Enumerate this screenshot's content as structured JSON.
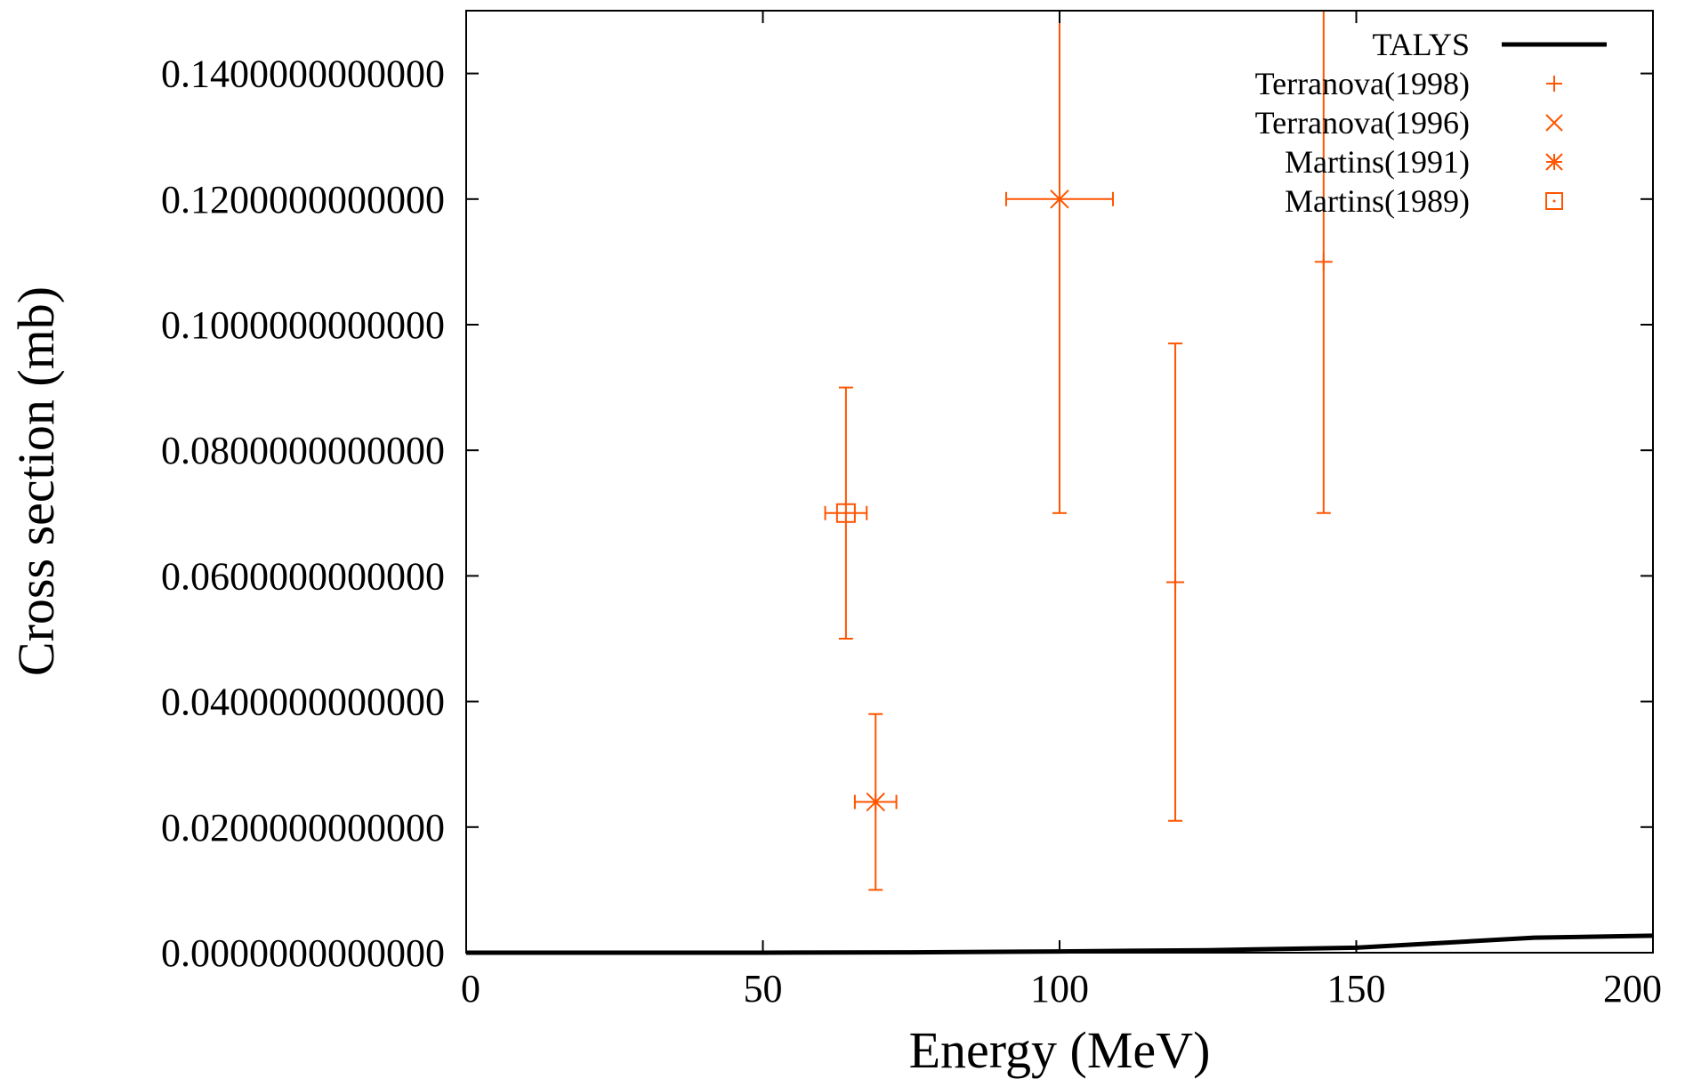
{
  "chart_data": {
    "type": "scatter",
    "xlabel": "Energy (MeV)",
    "ylabel": "Cross section (mb)",
    "xlim": [
      0,
      200
    ],
    "ylim": [
      0,
      0.15
    ],
    "x_ticks": [
      0,
      50,
      100,
      150,
      200
    ],
    "x_tick_labels": [
      "0",
      "50",
      "100",
      "150",
      "200"
    ],
    "y_ticks": [
      0,
      0.02,
      0.04,
      0.06,
      0.08,
      0.1,
      0.12,
      0.14
    ],
    "y_tick_labels": [
      "0.0000000000000",
      "0.0200000000000",
      "0.0400000000000",
      "0.0600000000000",
      "0.0800000000000",
      "0.1000000000000",
      "0.1200000000000",
      "0.1400000000000"
    ],
    "grid": false,
    "legend_position": "top-right",
    "series": [
      {
        "name": "TALYS",
        "kind": "line",
        "color": "#000000",
        "points": [
          {
            "x": 0,
            "y": 0.0
          },
          {
            "x": 50,
            "y": 0.0
          },
          {
            "x": 75,
            "y": 5e-05
          },
          {
            "x": 100,
            "y": 0.0002
          },
          {
            "x": 125,
            "y": 0.0004
          },
          {
            "x": 150,
            "y": 0.0008
          },
          {
            "x": 180,
            "y": 0.0024
          },
          {
            "x": 200,
            "y": 0.0027
          }
        ]
      },
      {
        "name": "Terranova(1998)",
        "kind": "points",
        "marker": "plus",
        "color": "#ff5500",
        "points": [
          {
            "x": 119.5,
            "y": 0.059,
            "yerr_low": 0.021,
            "yerr_high": 0.097
          },
          {
            "x": 144.5,
            "y": 0.11,
            "yerr_low": 0.07,
            "yerr_high": 0.15
          }
        ]
      },
      {
        "name": "Terranova(1996)",
        "kind": "points",
        "marker": "cross",
        "color": "#ff5500",
        "points": [
          {
            "x": 100,
            "y": 0.12,
            "yerr_low": 0.07,
            "yerr_high": 0.15,
            "xerr_low": 91,
            "xerr_high": 109
          }
        ]
      },
      {
        "name": "Martins(1991)",
        "kind": "points",
        "marker": "star",
        "color": "#ff5500",
        "points": [
          {
            "x": 69,
            "y": 0.024,
            "yerr_low": 0.01,
            "yerr_high": 0.038,
            "xerr_low": 65.5,
            "xerr_high": 72.5
          }
        ]
      },
      {
        "name": "Martins(1989)",
        "kind": "points",
        "marker": "square",
        "color": "#ff5500",
        "points": [
          {
            "x": 64,
            "y": 0.07,
            "yerr_low": 0.05,
            "yerr_high": 0.09,
            "xerr_low": 60.5,
            "xerr_high": 67.5
          }
        ]
      }
    ]
  }
}
